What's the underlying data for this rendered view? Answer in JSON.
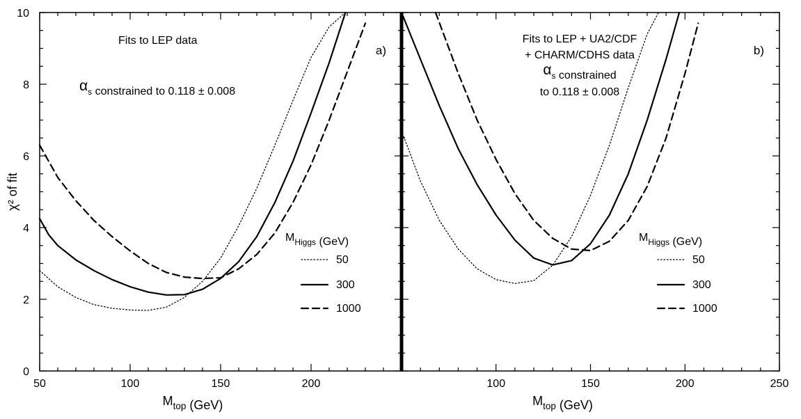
{
  "chart_data": [
    {
      "type": "line",
      "panel_label": "a)",
      "annotation_lines": [
        "Fits to LEP data",
        "α_s constrained to 0.118 ± 0.008"
      ],
      "xlabel": "M_top (GeV)",
      "ylabel": "χ² of fit",
      "xlim": [
        50,
        250
      ],
      "ylim": [
        0,
        10
      ],
      "x_tick_labels": [
        "50",
        "100",
        "150",
        "200"
      ],
      "y_tick_labels": [
        "0",
        "2",
        "4",
        "6",
        "8",
        "10"
      ],
      "legend": {
        "title": "M_Higgs (GeV)",
        "placement": "right",
        "entries": [
          {
            "label": "50",
            "style": "dotted"
          },
          {
            "label": "300",
            "style": "solid"
          },
          {
            "label": "1000",
            "style": "dashed"
          }
        ]
      },
      "series": [
        {
          "name": "50",
          "style": "dotted",
          "x": [
            50,
            60,
            70,
            80,
            90,
            100,
            110,
            120,
            130,
            140,
            150,
            160,
            170,
            180,
            190,
            200,
            210,
            219
          ],
          "y": [
            2.8,
            2.35,
            2.05,
            1.85,
            1.75,
            1.7,
            1.69,
            1.78,
            2.05,
            2.5,
            3.15,
            4.05,
            5.1,
            6.3,
            7.55,
            8.75,
            9.6,
            10.0
          ]
        },
        {
          "name": "300",
          "style": "solid",
          "x": [
            50,
            55,
            60,
            70,
            80,
            90,
            100,
            110,
            120,
            130,
            140,
            150,
            160,
            170,
            180,
            190,
            200,
            210,
            219
          ],
          "y": [
            4.25,
            3.8,
            3.5,
            3.1,
            2.8,
            2.55,
            2.35,
            2.2,
            2.12,
            2.13,
            2.28,
            2.58,
            3.05,
            3.75,
            4.7,
            5.85,
            7.2,
            8.6,
            10.0
          ]
        },
        {
          "name": "1000",
          "style": "dashed",
          "x": [
            50,
            60,
            70,
            80,
            90,
            100,
            110,
            120,
            130,
            140,
            150,
            160,
            170,
            180,
            190,
            200,
            210,
            220,
            230
          ],
          "y": [
            6.3,
            5.4,
            4.75,
            4.2,
            3.75,
            3.35,
            3.0,
            2.75,
            2.62,
            2.58,
            2.6,
            2.85,
            3.25,
            3.85,
            4.7,
            5.75,
            7.0,
            8.35,
            9.7
          ]
        }
      ]
    },
    {
      "type": "line",
      "panel_label": "b)",
      "annotation_lines": [
        "Fits to LEP + UA2/CDF",
        "+ CHARM/CDHS data",
        "α_s constrained",
        "to 0.118 ± 0.008"
      ],
      "xlabel": "M_top (GeV)",
      "ylabel": "",
      "xlim": [
        50,
        250
      ],
      "ylim": [
        0,
        10
      ],
      "x_tick_labels": [
        "100",
        "150",
        "200",
        "250"
      ],
      "y_tick_labels": [],
      "legend": {
        "title": "M_Higgs (GeV)",
        "placement": "right",
        "entries": [
          {
            "label": "50",
            "style": "dotted"
          },
          {
            "label": "300",
            "style": "solid"
          },
          {
            "label": "1000",
            "style": "dashed"
          }
        ]
      },
      "series": [
        {
          "name": "50",
          "style": "dotted",
          "x": [
            50,
            60,
            70,
            80,
            90,
            100,
            110,
            120,
            130,
            140,
            150,
            160,
            170,
            180,
            186
          ],
          "y": [
            6.7,
            5.3,
            4.2,
            3.4,
            2.85,
            2.55,
            2.44,
            2.52,
            2.95,
            3.75,
            4.9,
            6.3,
            7.9,
            9.4,
            10.0
          ]
        },
        {
          "name": "300",
          "style": "solid",
          "x": [
            50,
            60,
            70,
            80,
            90,
            100,
            110,
            120,
            130,
            140,
            150,
            160,
            170,
            180,
            190,
            197
          ],
          "y": [
            10.0,
            8.7,
            7.4,
            6.2,
            5.2,
            4.35,
            3.65,
            3.15,
            2.96,
            3.08,
            3.55,
            4.35,
            5.5,
            7.0,
            8.7,
            10.0
          ]
        },
        {
          "name": "1000",
          "style": "dashed",
          "x": [
            68,
            80,
            90,
            100,
            110,
            120,
            130,
            140,
            150,
            160,
            170,
            180,
            190,
            200,
            207
          ],
          "y": [
            10.0,
            8.3,
            7.0,
            5.9,
            4.95,
            4.2,
            3.7,
            3.4,
            3.36,
            3.62,
            4.2,
            5.15,
            6.5,
            8.3,
            9.7
          ]
        }
      ]
    }
  ]
}
